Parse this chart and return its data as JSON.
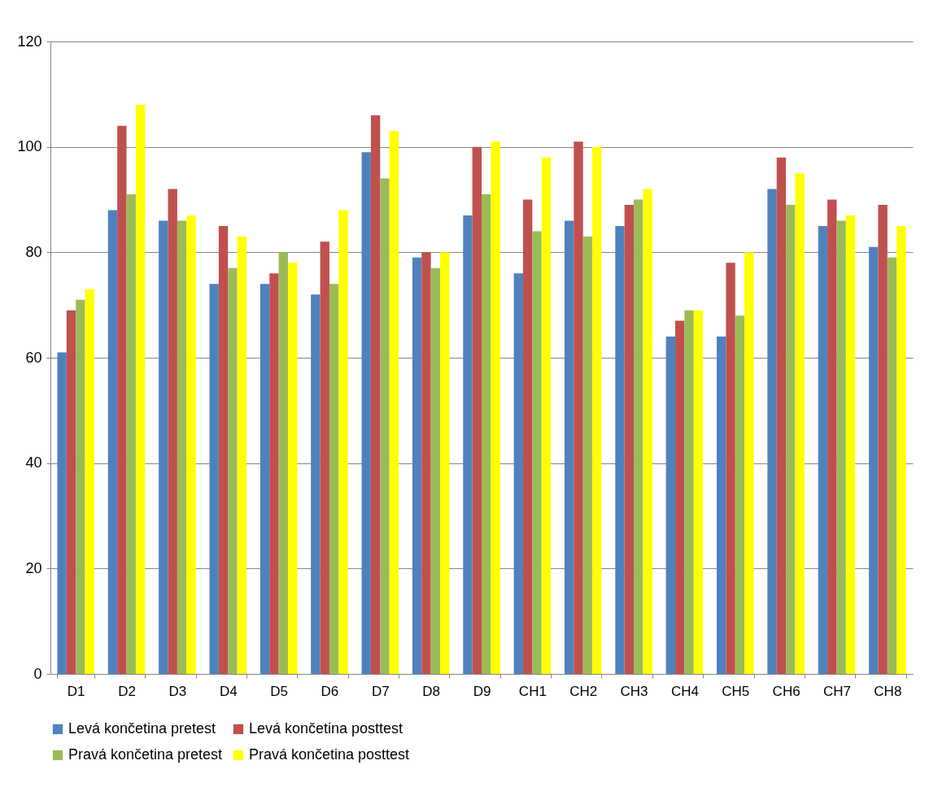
{
  "chart_data": {
    "type": "bar",
    "categories": [
      "D1",
      "D2",
      "D3",
      "D4",
      "D5",
      "D6",
      "D7",
      "D8",
      "D9",
      "CH1",
      "CH2",
      "CH3",
      "CH4",
      "CH5",
      "CH6",
      "CH7",
      "CH8"
    ],
    "series": [
      {
        "name": "Levá končetina pretest",
        "color": "#4f81bd",
        "values": [
          61,
          88,
          86,
          74,
          74,
          72,
          99,
          79,
          87,
          76,
          86,
          85,
          64,
          64,
          92,
          85,
          81
        ]
      },
      {
        "name": "Levá končetina posttest",
        "color": "#c0504d",
        "values": [
          69,
          104,
          92,
          85,
          76,
          82,
          106,
          80,
          100,
          90,
          101,
          89,
          67,
          78,
          98,
          90,
          89
        ]
      },
      {
        "name": "Pravá končetina pretest",
        "color": "#9bbb59",
        "values": [
          71,
          91,
          86,
          77,
          80,
          74,
          94,
          77,
          91,
          84,
          83,
          90,
          69,
          68,
          89,
          86,
          79
        ]
      },
      {
        "name": "Pravá končetina posttest",
        "color": "#ffff00",
        "values": [
          73,
          108,
          87,
          83,
          78,
          88,
          103,
          80,
          101,
          98,
          100,
          92,
          69,
          80,
          95,
          87,
          85
        ]
      }
    ],
    "ylim": [
      0,
      120
    ],
    "yticks": [
      0,
      20,
      40,
      60,
      80,
      100,
      120
    ],
    "grid": "y",
    "legend": "bottom"
  }
}
